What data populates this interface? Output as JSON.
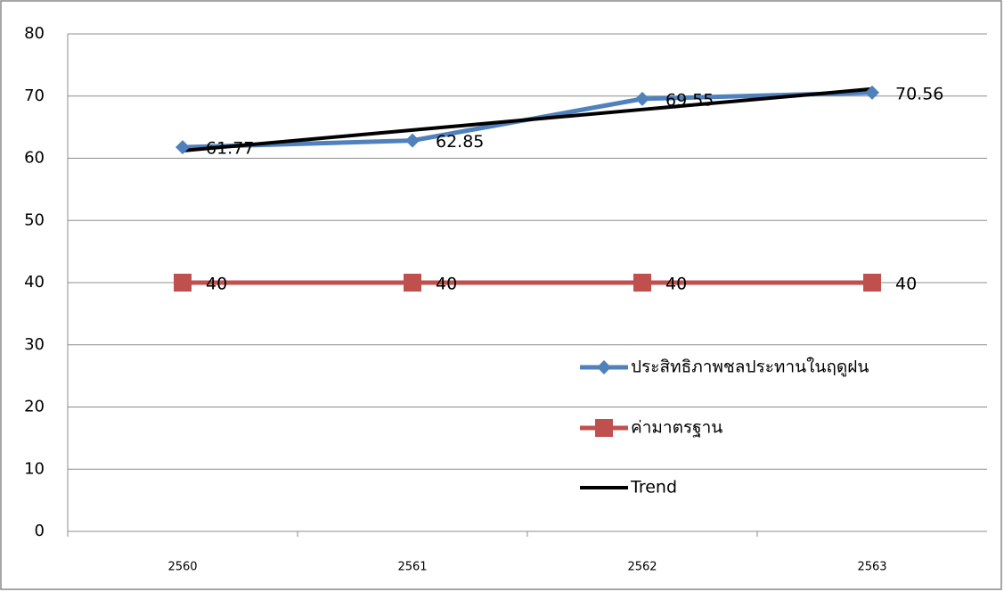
{
  "chart_data": {
    "type": "line",
    "categories": [
      "2560",
      "2561",
      "2562",
      "2563"
    ],
    "series": [
      {
        "name": "ประสิทธิภาพชลประทานในฤดูฝน",
        "color": "#4f81bd",
        "marker": "diamond",
        "values": [
          61.77,
          62.85,
          69.55,
          70.56
        ]
      },
      {
        "name": "ค่ามาตรฐาน",
        "color": "#c0504d",
        "marker": "square",
        "values": [
          40,
          40,
          40,
          40
        ]
      },
      {
        "name": "Trend",
        "color": "#000000",
        "marker": "none",
        "values": [
          61.22,
          64.53,
          67.84,
          71.14
        ]
      }
    ],
    "data_labels": [
      true,
      true,
      false
    ],
    "ylim": [
      0,
      80
    ],
    "yticks": [
      0,
      10,
      20,
      30,
      40,
      50,
      60,
      70,
      80
    ],
    "grid": true,
    "legend": "right"
  }
}
